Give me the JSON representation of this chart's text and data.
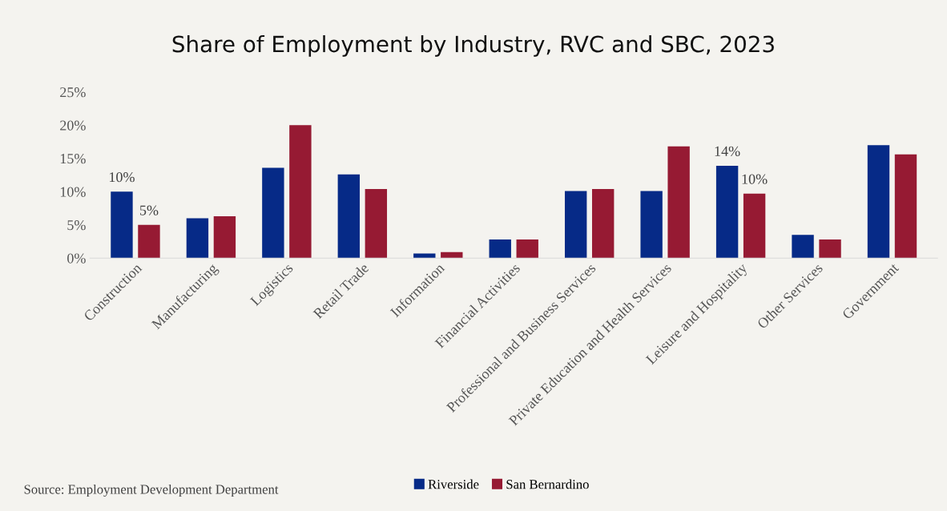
{
  "chart_data": {
    "type": "bar",
    "title": "Share of Employment by Industry, RVC and SBC, 2023",
    "categories": [
      "Construction",
      "Manufacturing",
      "Logistics",
      "Retail Trade",
      "Information",
      "Financial Activities",
      "Professional and Business Services",
      "Private Education and Health Services",
      "Leisure and Hospitality",
      "Other Services",
      "Government"
    ],
    "series": [
      {
        "name": "Riverside",
        "color": "#062a87",
        "values": [
          10,
          6.0,
          13.6,
          12.6,
          0.7,
          2.8,
          10.1,
          10.1,
          13.9,
          3.5,
          17.0
        ],
        "value_labels": [
          "10%",
          null,
          null,
          null,
          null,
          null,
          null,
          null,
          "14%",
          null,
          null
        ]
      },
      {
        "name": "San Bernardino",
        "color": "#961a33",
        "values": [
          5,
          6.3,
          20.0,
          10.4,
          0.9,
          2.8,
          10.4,
          16.8,
          9.7,
          2.8,
          15.6
        ],
        "value_labels": [
          "5%",
          null,
          null,
          null,
          null,
          null,
          null,
          null,
          "10%",
          null,
          null
        ]
      }
    ],
    "ylim": [
      0,
      25
    ],
    "yticks": [
      {
        "value": 0,
        "label": "0%"
      },
      {
        "value": 5,
        "label": "5%"
      },
      {
        "value": 10,
        "label": "10%"
      },
      {
        "value": 15,
        "label": "15%"
      },
      {
        "value": 20,
        "label": "20%"
      },
      {
        "value": 25,
        "label": "25%"
      }
    ],
    "grid": false,
    "legend": "bottom",
    "annotations": [
      "Source: Employment Development Department"
    ]
  }
}
